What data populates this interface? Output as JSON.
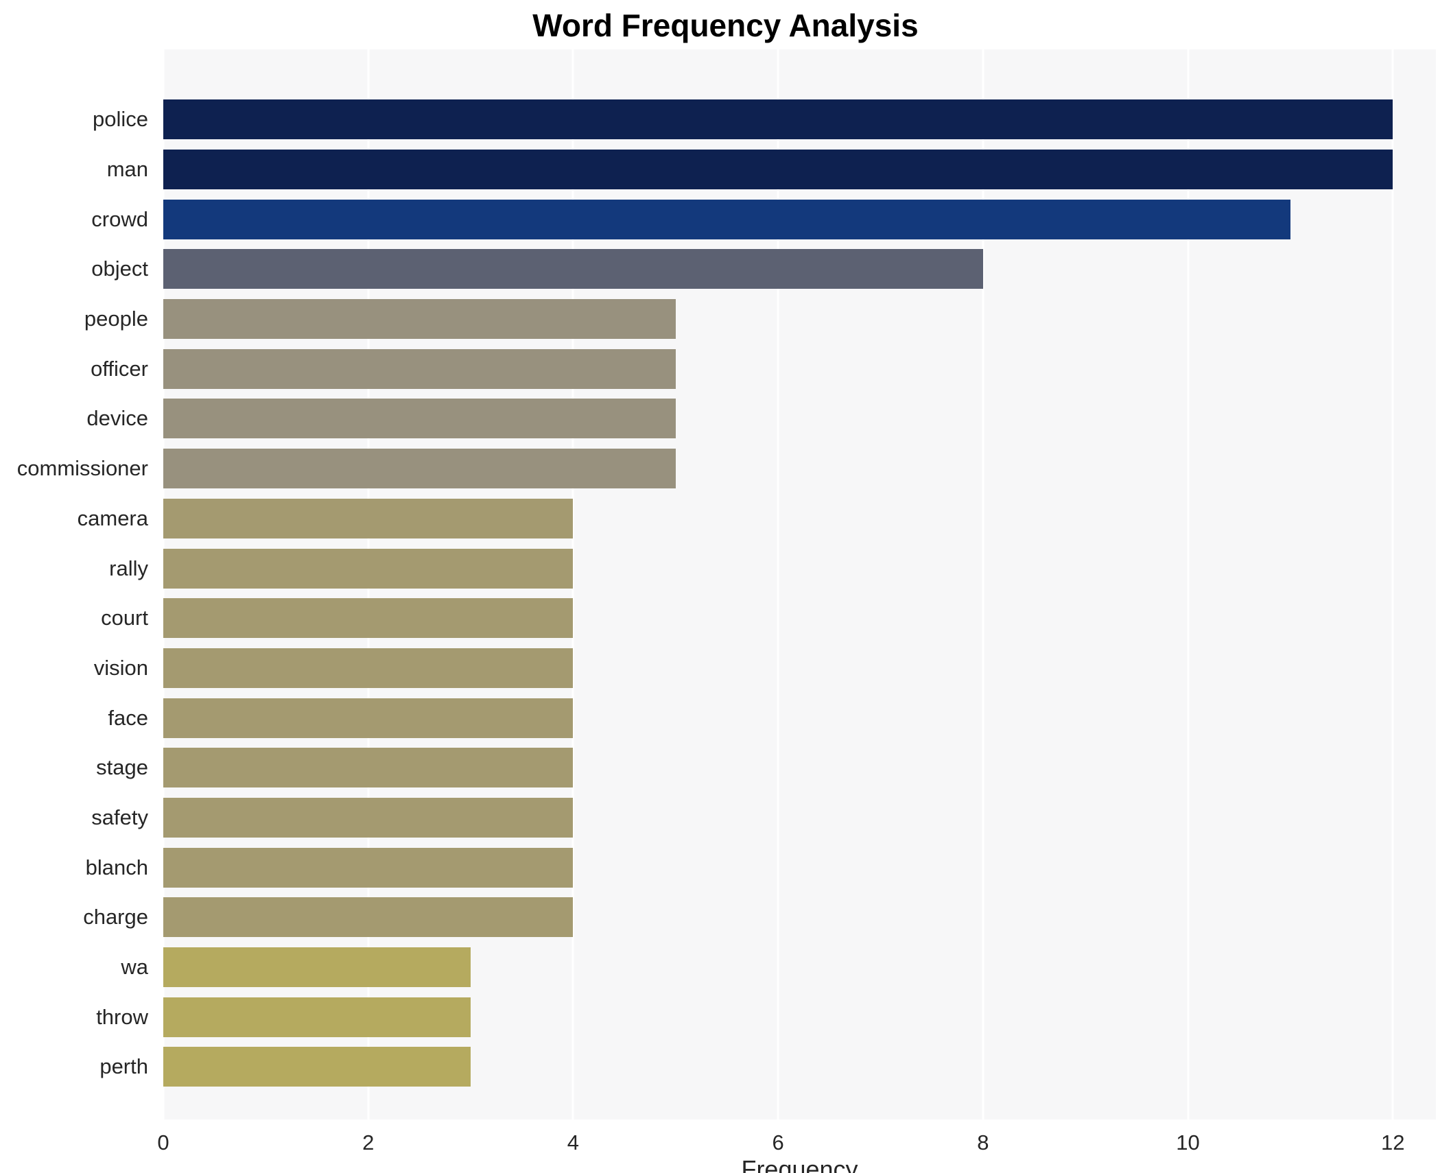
{
  "chart_data": {
    "type": "bar",
    "orientation": "horizontal",
    "title": "Word Frequency Analysis",
    "xlabel": "Frequency",
    "ylabel": "",
    "categories": [
      "police",
      "man",
      "crowd",
      "object",
      "people",
      "officer",
      "device",
      "commissioner",
      "camera",
      "rally",
      "court",
      "vision",
      "face",
      "stage",
      "safety",
      "blanch",
      "charge",
      "wa",
      "throw",
      "perth"
    ],
    "values": [
      12,
      12,
      11,
      8,
      5,
      5,
      5,
      5,
      4,
      4,
      4,
      4,
      4,
      4,
      4,
      4,
      4,
      3,
      3,
      3
    ],
    "bar_colors": [
      "#0e2150",
      "#0e2150",
      "#13397c",
      "#5c6172",
      "#98917e",
      "#98917e",
      "#98917e",
      "#98917e",
      "#a49a70",
      "#a49a70",
      "#a49a70",
      "#a49a70",
      "#a49a70",
      "#a49a70",
      "#a49a70",
      "#a49a70",
      "#a49a70",
      "#b5aa5f",
      "#b5aa5f",
      "#b5aa5f"
    ],
    "xticks": [
      0,
      2,
      4,
      6,
      8,
      10,
      12
    ],
    "xlim": [
      0,
      12.42
    ],
    "grid": true,
    "legend": "none",
    "panel_bg": "#f7f7f8",
    "grid_color": "#ffffff"
  }
}
